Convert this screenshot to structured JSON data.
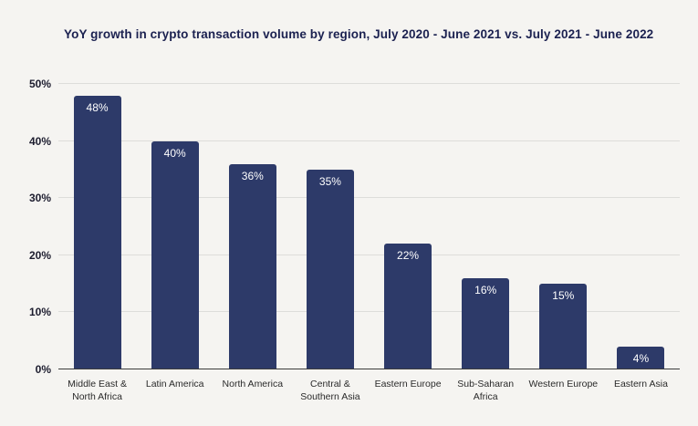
{
  "chart_data": {
    "type": "bar",
    "title": "YoY growth in crypto transaction volume by region, July 2020 - June 2021 vs. July 2021 - June 2022",
    "categories": [
      "Middle East &\nNorth Africa",
      "Latin America",
      "North America",
      "Central &\nSouthern Asia",
      "Eastern Europe",
      "Sub-Saharan\nAfrica",
      "Western Europe",
      "Eastern Asia"
    ],
    "values": [
      48,
      40,
      36,
      35,
      22,
      16,
      15,
      4
    ],
    "value_labels": [
      "48%",
      "40%",
      "36%",
      "35%",
      "22%",
      "16%",
      "15%",
      "4%"
    ],
    "xlabel": "",
    "ylabel": "",
    "ylim": [
      0,
      50
    ],
    "yticks": [
      0,
      10,
      20,
      30,
      40,
      50
    ],
    "ytick_suffix": "%",
    "grid": "horizontal",
    "legend": "none",
    "bar_color": "#2d3a69",
    "background_color": "#f5f4f1",
    "title_color": "#1b2150",
    "value_label_color": "#ffffff"
  }
}
